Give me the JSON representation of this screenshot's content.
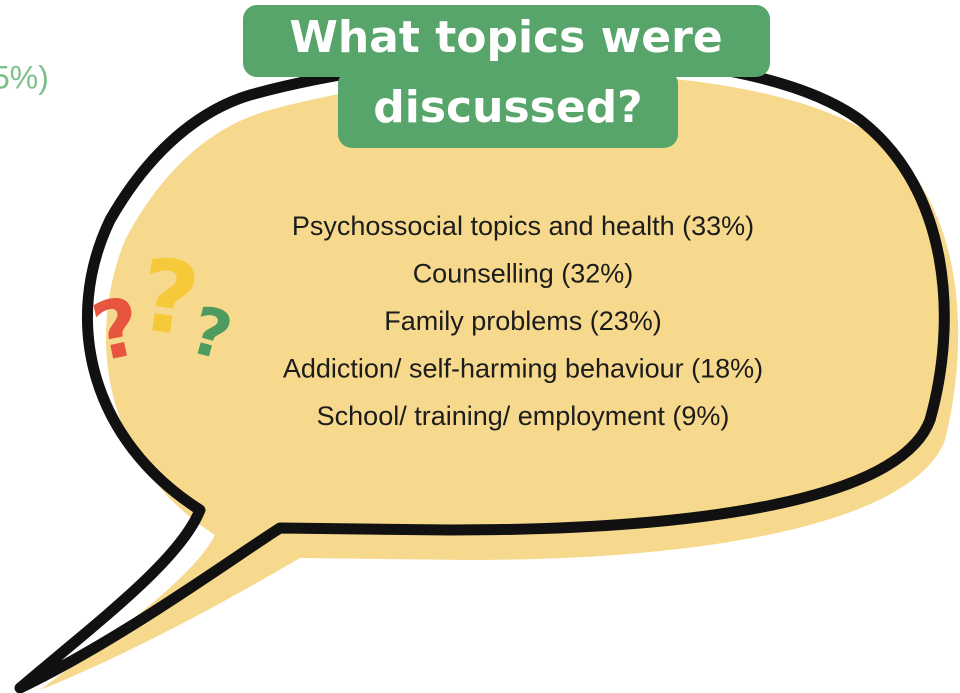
{
  "cut_text": "5%)",
  "title_lines": [
    "What topics were",
    "discussed?"
  ],
  "question_marks": [
    "?",
    "?",
    "?"
  ],
  "items": [
    "Psychossocial topics and health (33%)",
    "Counselling (32%)",
    "Family problems (23%)",
    "Addiction/ self-harming behaviour (18%)",
    "School/ training/ employment (9%)"
  ]
}
